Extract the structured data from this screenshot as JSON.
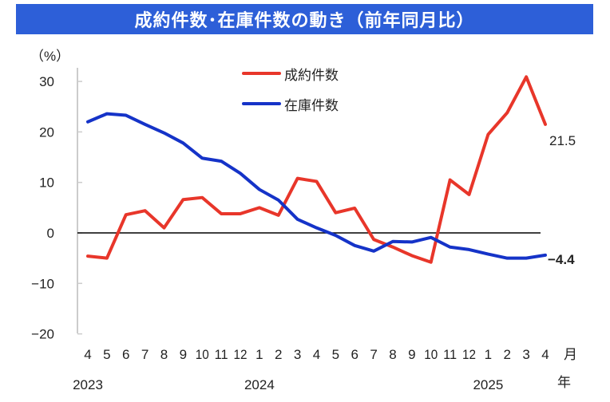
{
  "title": "成約件数･在庫件数の動き（前年同月比）",
  "chart_data": {
    "type": "line",
    "ylabel": "（%）",
    "ylim": [
      -20,
      30
    ],
    "yticks": [
      30,
      20,
      10,
      0,
      -10,
      -20
    ],
    "x_month_labels": [
      "4",
      "5",
      "6",
      "7",
      "8",
      "9",
      "10",
      "11",
      "12",
      "1",
      "2",
      "3",
      "4",
      "5",
      "6",
      "7",
      "8",
      "9",
      "10",
      "11",
      "12",
      "1",
      "2",
      "3",
      "4"
    ],
    "x_unit_label": "月",
    "year_labels": [
      "2023",
      "2024",
      "2025"
    ],
    "year_unit_label": "年",
    "legend_position": "top-center",
    "series": [
      {
        "name": "成約件数",
        "color": "#e8362a",
        "values": [
          -4.6,
          -5.0,
          3.6,
          4.4,
          1.0,
          6.6,
          7.0,
          3.8,
          3.8,
          5.0,
          3.5,
          10.8,
          10.2,
          4.0,
          4.9,
          -1.3,
          -2.8,
          -4.5,
          -5.8,
          10.5,
          7.6,
          19.5,
          23.8,
          30.9,
          21.5
        ],
        "end_label": "21.5",
        "end_label_color": "#333333"
      },
      {
        "name": "在庫件数",
        "color": "#1533c8",
        "values": [
          22.0,
          23.6,
          23.3,
          21.5,
          19.8,
          17.8,
          14.8,
          14.2,
          11.8,
          8.6,
          6.5,
          2.7,
          1.0,
          -0.5,
          -2.5,
          -3.6,
          -1.7,
          -1.8,
          -0.9,
          -2.8,
          -3.3,
          -4.2,
          -5.0,
          -5.0,
          -4.4
        ],
        "end_label": "-4.4",
        "end_label_color": "#e8362a"
      }
    ]
  }
}
